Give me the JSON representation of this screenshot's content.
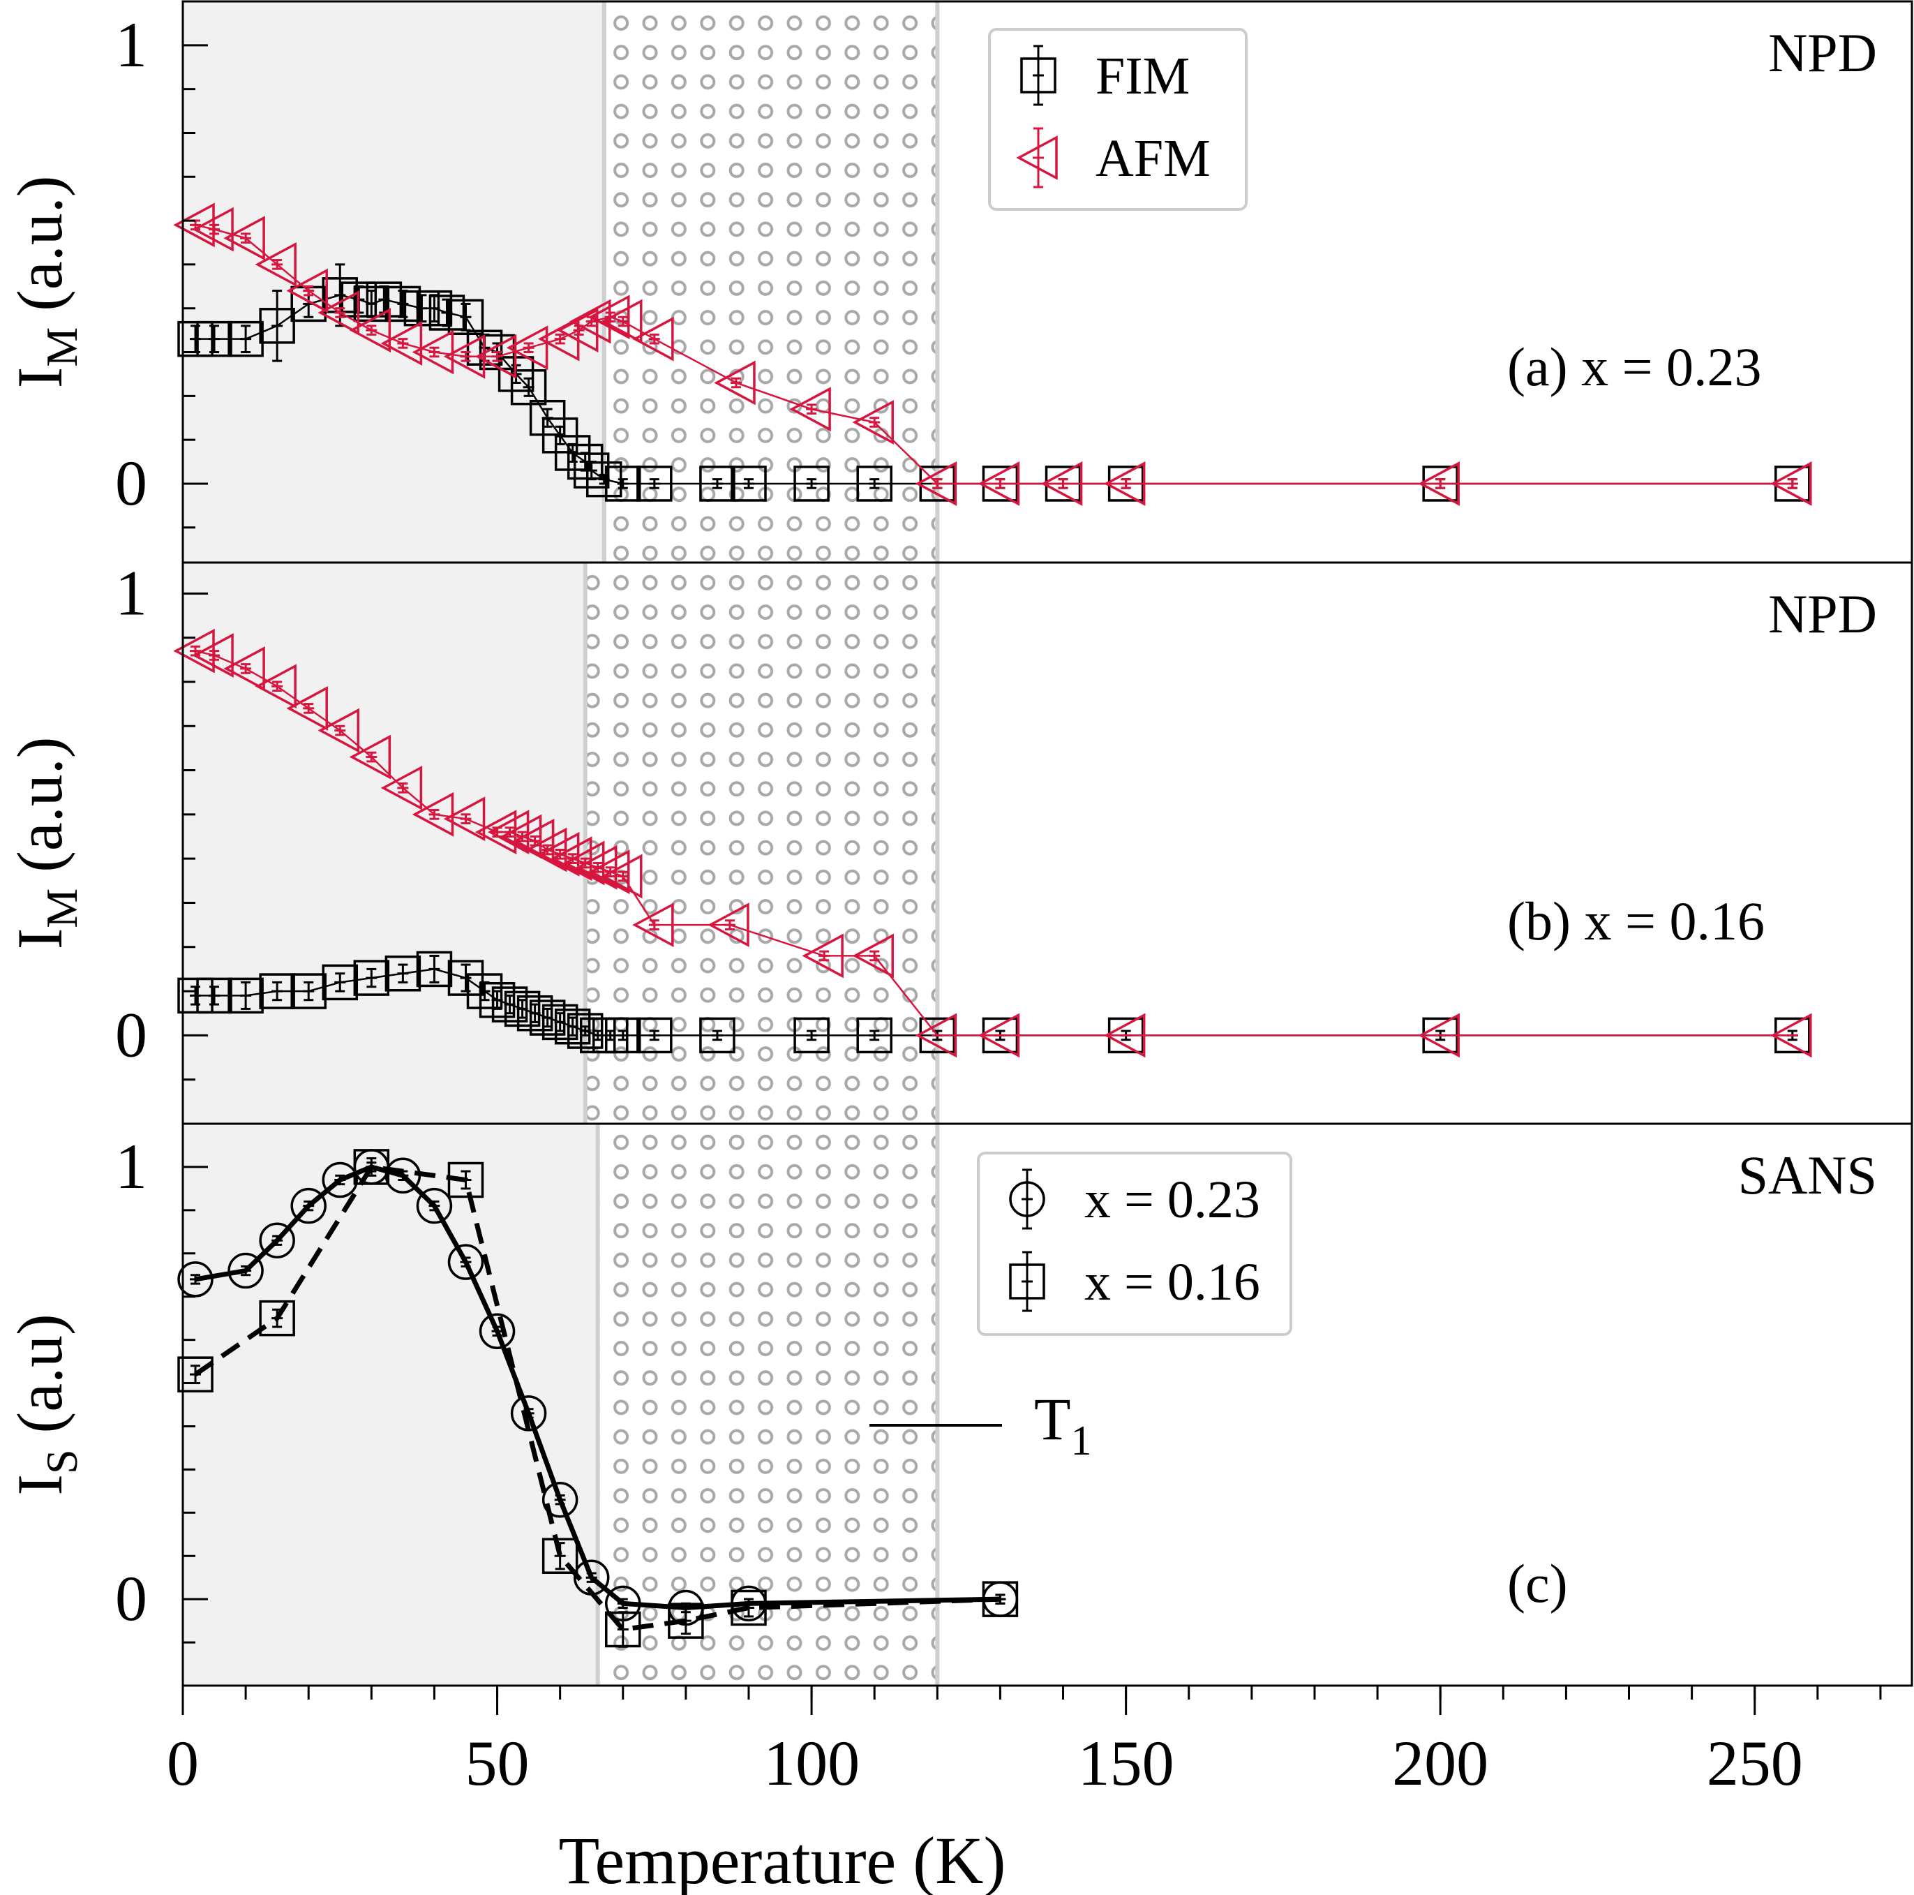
{
  "colors": {
    "fim": "#000000",
    "afm": "#d6163f",
    "shade": "#f1f1f1",
    "band_line": "#cfcfcf",
    "dots": "#a8a8a8"
  },
  "x_axis": {
    "label": "Temperature (K)",
    "range": [
      0,
      275
    ],
    "ticks": [
      0,
      50,
      100,
      150,
      200,
      250
    ],
    "tick_labels": [
      "0",
      "50",
      "100",
      "150",
      "200",
      "250"
    ],
    "minor_step": 10
  },
  "chart_data": [
    {
      "type": "scatter",
      "panel": "a",
      "ylabel_main": "I",
      "ylabel_sub": "M",
      "ylabel_tail": " (a.u.)",
      "ylim": [
        -0.18,
        1.1
      ],
      "yticks": [
        0,
        1
      ],
      "ytick_labels": [
        "0",
        "1"
      ],
      "yminor_step": 0.1,
      "annotation": "(a) x = 0.23",
      "corner_label": "NPD",
      "shade_end": 67,
      "band": [
        67,
        120
      ],
      "legend": {
        "entries": [
          "FIM",
          "AFM"
        ]
      },
      "series": [
        {
          "name": "FIM",
          "marker": "square",
          "color": "fim",
          "x": [
            2,
            5,
            10,
            15,
            20,
            25,
            28,
            30,
            32,
            35,
            38,
            40,
            42,
            45,
            48,
            50,
            53,
            55,
            58,
            60,
            62,
            64,
            65,
            67,
            70,
            75,
            85,
            90,
            100,
            110,
            120,
            130,
            140,
            150,
            200,
            256
          ],
          "y": [
            0.33,
            0.33,
            0.33,
            0.36,
            0.41,
            0.43,
            0.42,
            0.41,
            0.42,
            0.41,
            0.4,
            0.4,
            0.39,
            0.38,
            0.31,
            0.3,
            0.25,
            0.22,
            0.15,
            0.11,
            0.07,
            0.05,
            0.03,
            0.01,
            0,
            0,
            0,
            0,
            0,
            0,
            0,
            0,
            0,
            0,
            0,
            0
          ],
          "err": [
            0.03,
            0.03,
            0.03,
            0.08,
            0.03,
            0.07,
            0.03,
            0.03,
            0.03,
            0.03,
            0.03,
            0.03,
            0.03,
            0.03,
            0.03,
            0.02,
            0.02,
            0.02,
            0.02,
            0.02,
            0.02,
            0.02,
            0.02,
            0.01,
            0.01,
            0.01,
            0.01,
            0.01,
            0.01,
            0.01,
            0.01,
            0.01,
            0.01,
            0.01,
            0.01,
            0.01
          ]
        },
        {
          "name": "AFM",
          "marker": "triangle-left",
          "color": "afm",
          "x": [
            2,
            5,
            10,
            15,
            20,
            25,
            30,
            35,
            40,
            45,
            50,
            55,
            60,
            63,
            65,
            68,
            70,
            75,
            88,
            100,
            110,
            120,
            130,
            140,
            150,
            200,
            256
          ],
          "y": [
            0.59,
            0.58,
            0.56,
            0.5,
            0.44,
            0.39,
            0.35,
            0.32,
            0.3,
            0.29,
            0.29,
            0.31,
            0.33,
            0.35,
            0.37,
            0.38,
            0.37,
            0.33,
            0.23,
            0.17,
            0.14,
            0,
            0,
            0,
            0,
            0,
            0
          ],
          "err": [
            0.01,
            0.01,
            0.01,
            0.01,
            0.01,
            0.01,
            0.01,
            0.01,
            0.01,
            0.01,
            0.01,
            0.01,
            0.01,
            0.01,
            0.01,
            0.01,
            0.01,
            0.01,
            0.01,
            0.01,
            0.01,
            0.01,
            0.01,
            0.01,
            0.01,
            0.01,
            0.01
          ]
        }
      ]
    },
    {
      "type": "scatter",
      "panel": "b",
      "ylabel_main": "I",
      "ylabel_sub": "M",
      "ylabel_tail": " (a.u.)",
      "ylim": [
        -0.2,
        1.07
      ],
      "yticks": [
        0,
        1
      ],
      "ytick_labels": [
        "0",
        "1"
      ],
      "yminor_step": 0.1,
      "annotation": "(b) x = 0.16",
      "corner_label": "NPD",
      "shade_end": 64,
      "band": [
        64,
        120
      ],
      "legend": null,
      "series": [
        {
          "name": "FIM",
          "marker": "square",
          "color": "fim",
          "x": [
            2,
            5,
            10,
            15,
            20,
            25,
            30,
            35,
            40,
            45,
            48,
            50,
            52,
            54,
            56,
            58,
            60,
            62,
            64,
            66,
            68,
            70,
            75,
            85,
            100,
            110,
            120,
            130,
            150,
            200,
            256
          ],
          "y": [
            0.09,
            0.09,
            0.09,
            0.1,
            0.1,
            0.12,
            0.13,
            0.14,
            0.15,
            0.13,
            0.1,
            0.08,
            0.07,
            0.06,
            0.05,
            0.04,
            0.03,
            0.02,
            0.01,
            0,
            0,
            0,
            0,
            0,
            0,
            0,
            0,
            0,
            0,
            0,
            0
          ],
          "err": [
            0.02,
            0.02,
            0.03,
            0.02,
            0.02,
            0.02,
            0.02,
            0.02,
            0.03,
            0.03,
            0.02,
            0.02,
            0.02,
            0.02,
            0.02,
            0.02,
            0.02,
            0.02,
            0.01,
            0.01,
            0.01,
            0.01,
            0.01,
            0.01,
            0.01,
            0.01,
            0.01,
            0.01,
            0.01,
            0.01,
            0.01
          ]
        },
        {
          "name": "AFM",
          "marker": "triangle-left",
          "color": "afm",
          "x": [
            2,
            5,
            10,
            15,
            20,
            25,
            30,
            35,
            40,
            45,
            50,
            52,
            54,
            56,
            58,
            60,
            62,
            64,
            66,
            68,
            70,
            75,
            87,
            102,
            110,
            120,
            130,
            150,
            200,
            256
          ],
          "y": [
            0.87,
            0.86,
            0.83,
            0.79,
            0.74,
            0.69,
            0.63,
            0.56,
            0.5,
            0.49,
            0.46,
            0.46,
            0.45,
            0.44,
            0.42,
            0.41,
            0.4,
            0.39,
            0.38,
            0.37,
            0.36,
            0.25,
            0.25,
            0.18,
            0.18,
            0,
            0,
            0,
            0,
            0
          ],
          "err": [
            0.01,
            0.01,
            0.01,
            0.01,
            0.01,
            0.01,
            0.01,
            0.01,
            0.01,
            0.01,
            0.01,
            0.01,
            0.01,
            0.01,
            0.01,
            0.01,
            0.01,
            0.01,
            0.01,
            0.01,
            0.01,
            0.01,
            0.01,
            0.01,
            0.01,
            0,
            0,
            0,
            0,
            0
          ]
        }
      ]
    },
    {
      "type": "line",
      "panel": "c",
      "ylabel_main": "I",
      "ylabel_sub": "S",
      "ylabel_tail": " (a.u)",
      "ylim": [
        -0.2,
        1.1
      ],
      "yticks": [
        0,
        1
      ],
      "ytick_labels": [
        "0",
        "1"
      ],
      "yminor_step": 0.1,
      "annotation": "(c)",
      "corner_label": "SANS",
      "shade_end": 66,
      "band": [
        66,
        120
      ],
      "t1_label": "T",
      "t1_sub": "1",
      "legend": {
        "entries": [
          "x = 0.23",
          "x = 0.16"
        ]
      },
      "series": [
        {
          "name": "x = 0.23",
          "marker": "circle",
          "dash": "solid",
          "x": [
            2,
            10,
            15,
            20,
            25,
            30,
            35,
            40,
            45,
            50,
            55,
            60,
            65,
            70,
            80,
            90,
            130
          ],
          "y": [
            0.74,
            0.76,
            0.83,
            0.91,
            0.97,
            1.0,
            0.98,
            0.91,
            0.78,
            0.62,
            0.43,
            0.23,
            0.05,
            -0.01,
            -0.02,
            -0.01,
            0
          ],
          "err": [
            0.01,
            0.01,
            0.01,
            0.01,
            0.01,
            0.01,
            0.01,
            0.01,
            0.01,
            0.01,
            0.01,
            0.01,
            0.01,
            0.01,
            0.01,
            0.01,
            0.01
          ]
        },
        {
          "name": "x = 0.16",
          "marker": "square",
          "dash": "dashed",
          "x": [
            2,
            15,
            30,
            45,
            60,
            70,
            80,
            90,
            130
          ],
          "y": [
            0.52,
            0.65,
            1.0,
            0.97,
            0.1,
            -0.07,
            -0.05,
            -0.02,
            0
          ],
          "err": [
            0.02,
            0.02,
            0.02,
            0.02,
            0.03,
            0.04,
            0.03,
            0.02,
            0.01
          ]
        }
      ]
    }
  ]
}
